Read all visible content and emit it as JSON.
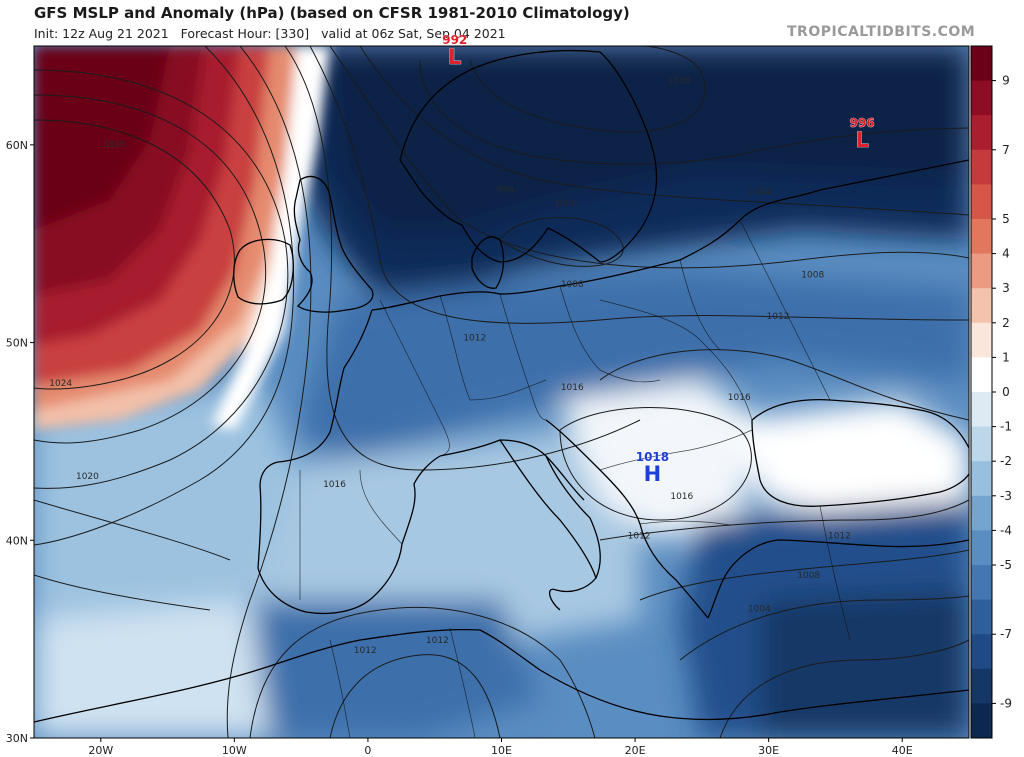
{
  "header": {
    "title": "GFS MSLP and Anomaly (hPa) (based on CFSR 1981-2010 Climatology)",
    "subtitle": "Init: 12z Aug 21 2021   Forecast Hour: [330]   valid at 06z Sat, Sep 04 2021",
    "brand": "TROPICALTIDBITS.COM"
  },
  "map": {
    "projection": "plate-carree",
    "lon_range": [
      -25,
      45
    ],
    "lat_range": [
      30,
      65
    ],
    "lat_ticks": [
      "60N",
      "50N",
      "40N",
      "30N"
    ],
    "lon_ticks": [
      "20W",
      "10W",
      "0",
      "10E",
      "20E",
      "30E",
      "40E"
    ],
    "isobar_labels": [
      {
        "text": "1020",
        "lon": -19,
        "lat": 59.9
      },
      {
        "text": "1024",
        "lon": -23,
        "lat": 47.8
      },
      {
        "text": "1020",
        "lon": -21,
        "lat": 43.1
      },
      {
        "text": "1016",
        "lon": -2.5,
        "lat": 42.7
      },
      {
        "text": "1012",
        "lon": 8,
        "lat": 50.1
      },
      {
        "text": "1016",
        "lon": 15.3,
        "lat": 47.6
      },
      {
        "text": "1016",
        "lon": 27.8,
        "lat": 47.1
      },
      {
        "text": "1016",
        "lon": 23.5,
        "lat": 42.1
      },
      {
        "text": "1012",
        "lon": 20.3,
        "lat": 40.1
      },
      {
        "text": "1012",
        "lon": 35.3,
        "lat": 40.1
      },
      {
        "text": "1012",
        "lon": 30.7,
        "lat": 51.2
      },
      {
        "text": "1008",
        "lon": 15.3,
        "lat": 52.8
      },
      {
        "text": "1008",
        "lon": 33.3,
        "lat": 53.3
      },
      {
        "text": "1004",
        "lon": 29.3,
        "lat": 57.5
      },
      {
        "text": "1000",
        "lon": 23.3,
        "lat": 63.1
      },
      {
        "text": "1000",
        "lon": 14.8,
        "lat": 56.9
      },
      {
        "text": "996",
        "lon": 10.3,
        "lat": 57.6
      },
      {
        "text": "1008",
        "lon": 33,
        "lat": 38.1
      },
      {
        "text": "1004",
        "lon": 29.3,
        "lat": 36.4
      },
      {
        "text": "1012",
        "lon": -0.2,
        "lat": 34.3
      },
      {
        "text": "1012",
        "lon": 5.2,
        "lat": 34.8
      }
    ],
    "pressure_centers": [
      {
        "type": "low",
        "letter": "L",
        "value": "992",
        "lon": 6.5,
        "lat": 64.3,
        "color": "#e0202a"
      },
      {
        "type": "low",
        "letter": "L",
        "value": "996",
        "lon": 37,
        "lat": 60.1,
        "color": "#e0202a"
      },
      {
        "type": "high",
        "letter": "H",
        "value": "1018",
        "lon": 21.3,
        "lat": 43.2,
        "color": "#1c3fd8"
      }
    ]
  },
  "colorbar": {
    "labels": [
      "9",
      "7",
      "5",
      "4",
      "3",
      "2",
      "1",
      "0",
      "-1",
      "-2",
      "-3",
      "-4",
      "-5",
      "-7",
      "-9"
    ],
    "colors": [
      "#6b0018",
      "#8c0d24",
      "#aa1f30",
      "#c43a3d",
      "#d6574a",
      "#e2775e",
      "#ec9b82",
      "#f4c3ad",
      "#fbe6dc",
      "#ffffff",
      "#dde9f3",
      "#bcd6ea",
      "#98bfde",
      "#75a5cf",
      "#5a8dc1",
      "#4477b1",
      "#2f5f9b",
      "#1f4a85",
      "#143766",
      "#0c2750"
    ]
  }
}
